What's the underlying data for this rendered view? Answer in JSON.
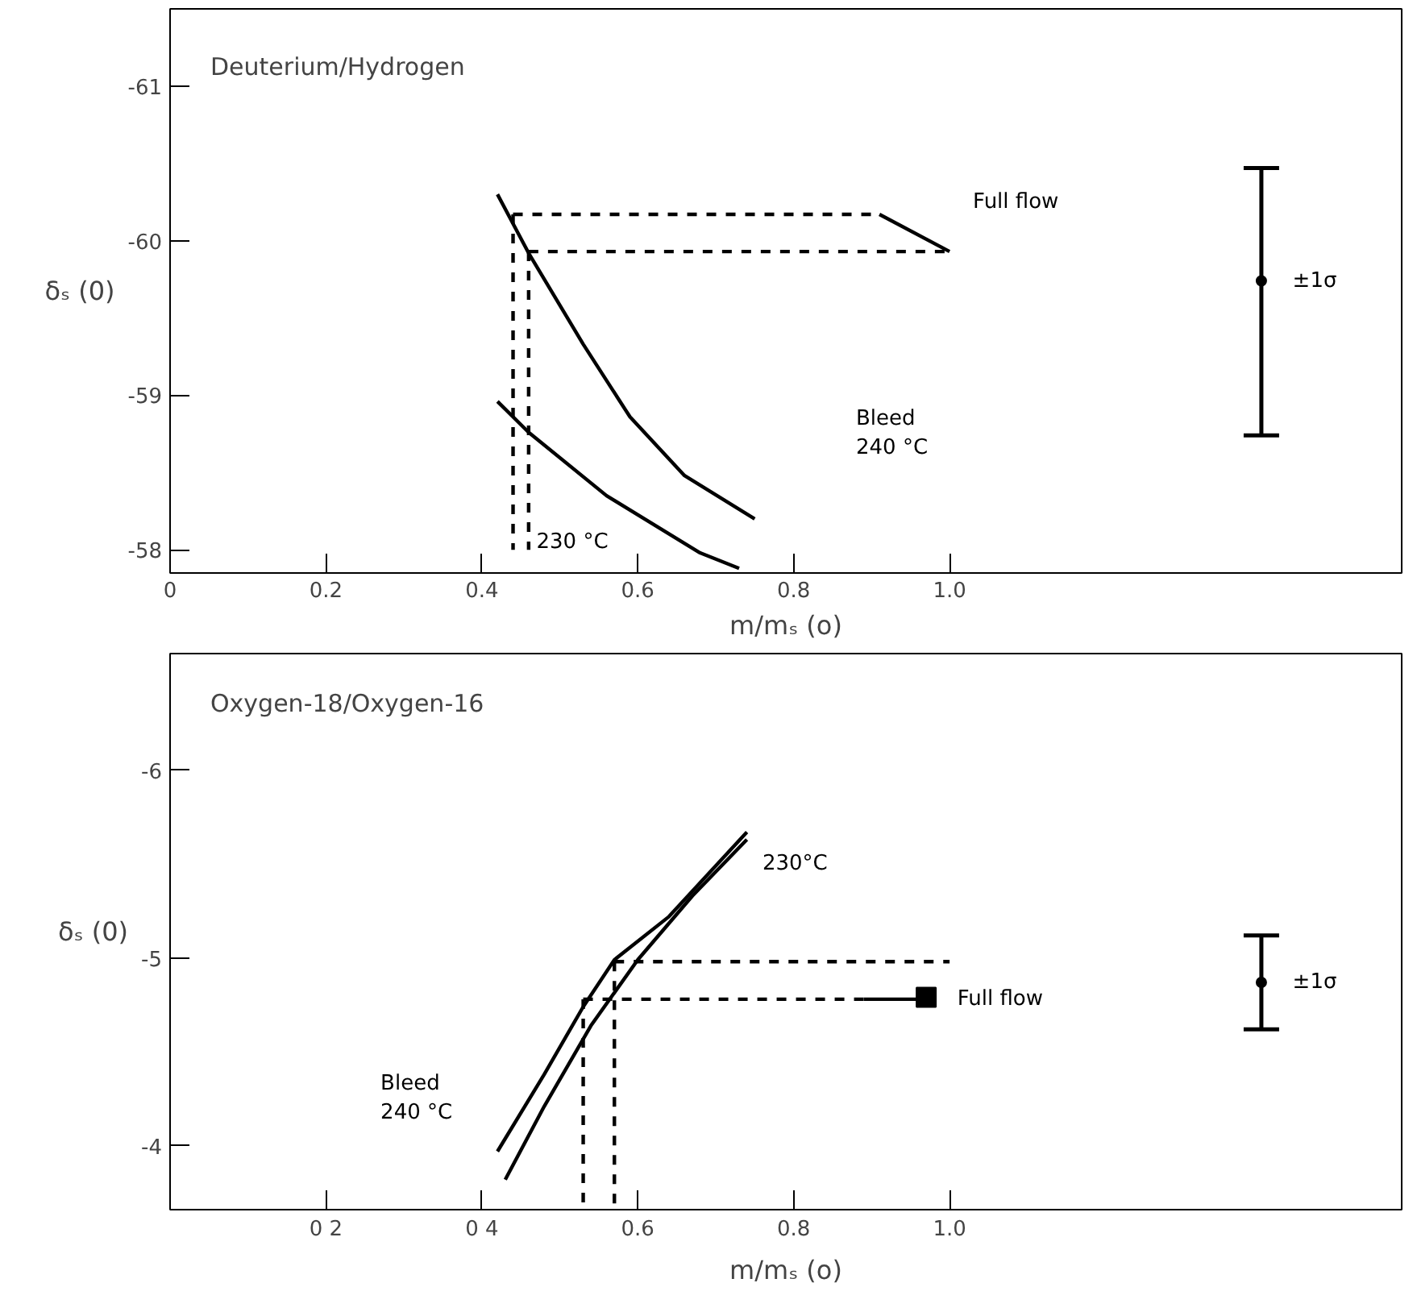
{
  "chart_data": [
    {
      "type": "line",
      "title": "Deuterium/Hydrogen",
      "xlabel": "m/mₛ (o)",
      "ylabel": "δₛ (0)",
      "xlim": [
        0,
        1.58
      ],
      "ylim": [
        -57.85,
        -61.5
      ],
      "xticks": [
        0,
        0.2,
        0.4,
        0.6,
        0.8,
        {
          "value": 1.0,
          "label": "1.0"
        }
      ],
      "yticks": [
        -58,
        -59,
        -60,
        -61
      ],
      "grid": false,
      "line_style": "solid",
      "marker": "none",
      "series": [
        {
          "color": "#000000",
          "x": [
            0.42,
            0.46,
            0.53,
            0.59,
            0.66,
            0.75
          ],
          "values": [
            -60.3,
            -59.92,
            -59.33,
            -58.86,
            -58.48,
            -58.2
          ]
        },
        {
          "color": "#000000",
          "x": [
            0.42,
            0.46,
            0.56,
            0.68,
            0.73
          ],
          "values": [
            -58.96,
            -58.76,
            -58.35,
            -57.98,
            -57.88
          ]
        },
        {
          "color": "#000000",
          "line_style": "dashed",
          "x": [
            0.44,
            0.91
          ],
          "values": [
            -60.17,
            -60.17
          ]
        },
        {
          "color": "#000000",
          "line_style": "dashed",
          "x": [
            0.46,
            1.0
          ],
          "values": [
            -59.93,
            -59.93
          ]
        },
        {
          "color": "#000000",
          "line_style": "dashed",
          "x": [
            0.44,
            0.44
          ],
          "values": [
            -60.17,
            -58
          ]
        },
        {
          "color": "#000000",
          "line_style": "dashed",
          "x": [
            0.46,
            0.46
          ],
          "values": [
            -59.93,
            -58
          ]
        },
        {
          "color": "#000000",
          "x": [
            0.91,
            1.0
          ],
          "values": [
            -60.17,
            -59.93
          ]
        },
        {
          "type": "scatter",
          "marker": "circle",
          "color": "#000000",
          "x": [
            1.4
          ],
          "values": [
            -59.74
          ],
          "errors": [
            [
              -60.47,
              -58.74
            ]
          ]
        }
      ],
      "annotations": [
        "Full flow",
        "Bleed\n240 °C",
        "230 °C",
        "±1σ"
      ]
    },
    {
      "type": "line",
      "title": "Oxygen-18/Oxygen-16",
      "xlabel": "m/mₛ (o)",
      "ylabel": "δₛ (0)",
      "xlim": [
        0,
        1.58
      ],
      "ylim": [
        -3.66,
        -6.62
      ],
      "xticks": [
        {
          "value": 0.2,
          "label": "0 2"
        },
        {
          "value": 0.4,
          "label": "0 4"
        },
        0.6,
        0.8,
        {
          "value": 1.0,
          "label": "1.0"
        }
      ],
      "yticks": [
        -4,
        -5,
        -6
      ],
      "grid": false,
      "line_style": "solid",
      "marker": "none",
      "series": [
        {
          "color": "#000000",
          "x": [
            0.42,
            0.48,
            0.53,
            0.57,
            0.64,
            0.74
          ],
          "values": [
            -3.97,
            -4.38,
            -4.74,
            -4.99,
            -5.22,
            -5.67
          ]
        },
        {
          "color": "#000000",
          "x": [
            0.43,
            0.48,
            0.54,
            0.6,
            0.67,
            0.74
          ],
          "values": [
            -3.82,
            -4.21,
            -4.64,
            -4.99,
            -5.33,
            -5.63
          ]
        },
        {
          "color": "#000000",
          "line_style": "dashed",
          "x": [
            0.57,
            1.0
          ],
          "values": [
            -4.98,
            -4.98
          ]
        },
        {
          "color": "#000000",
          "line_style": "dashed",
          "x": [
            0.53,
            0.89
          ],
          "values": [
            -4.78,
            -4.78
          ]
        },
        {
          "color": "#000000",
          "line_style": "dashed",
          "x": [
            0.53,
            0.53
          ],
          "values": [
            -4.78,
            -3.66
          ]
        },
        {
          "color": "#000000",
          "line_style": "dashed",
          "x": [
            0.57,
            0.57
          ],
          "values": [
            -4.98,
            -3.66
          ]
        },
        {
          "color": "#000000",
          "x": [
            0.89,
            0.96
          ],
          "values": [
            -4.78,
            -4.78
          ]
        },
        {
          "type": "scatter",
          "marker": "square",
          "color": "#000000",
          "x": [
            0.97
          ],
          "values": [
            -4.79
          ]
        },
        {
          "type": "scatter",
          "marker": "circle",
          "color": "#000000",
          "x": [
            1.4
          ],
          "values": [
            -4.87
          ],
          "errors": [
            [
              -5.12,
              -4.62
            ]
          ]
        }
      ],
      "annotations": [
        "230°C",
        "Bleed\n240 °C",
        "Full flow",
        "±1σ"
      ]
    }
  ]
}
